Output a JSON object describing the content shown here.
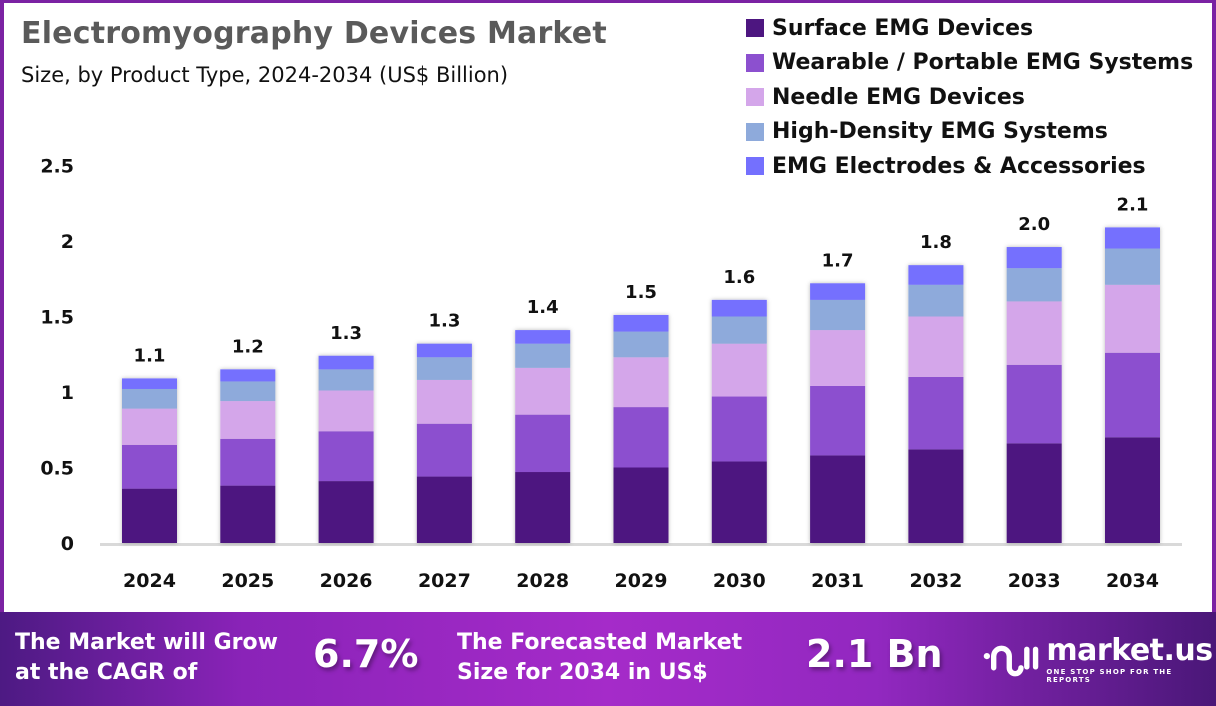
{
  "header": {
    "title": "Electromyography Devices Market",
    "subtitle": "Size, by Product Type, 2024-2034 (US$ Billion)"
  },
  "colors": {
    "brand_purple": "#7b22a3",
    "Surface EMG Devices": "#4d1680",
    "Wearable / Portable EMG Systems": "#8c50cf",
    "Needle EMG Devices": "#d4a6ea",
    "High-Density EMG Systems": "#8eaadb",
    "EMG Electrodes & Accessories": "#7470fe"
  },
  "chart_data": {
    "type": "bar",
    "stacked": true,
    "title": "Electromyography Devices Market",
    "subtitle": "Size, by Product Type, 2024-2034 (US$ Billion)",
    "xlabel": "",
    "ylabel": "",
    "ylim": [
      0,
      2.5
    ],
    "yticks": [
      0,
      0.5,
      1,
      1.5,
      2,
      2.5
    ],
    "ytick_labels": [
      "0",
      "0.5",
      "1",
      "1.5",
      "2",
      "2.5"
    ],
    "grid": false,
    "legend_position": "top-right",
    "categories": [
      "2024",
      "2025",
      "2026",
      "2027",
      "2028",
      "2029",
      "2030",
      "2031",
      "2032",
      "2033",
      "2034"
    ],
    "series": [
      {
        "name": "Surface EMG Devices",
        "color": "#4d1680",
        "values": [
          0.36,
          0.38,
          0.41,
          0.44,
          0.47,
          0.5,
          0.54,
          0.58,
          0.62,
          0.66,
          0.7
        ]
      },
      {
        "name": "Wearable / Portable EMG Systems",
        "color": "#8c50cf",
        "values": [
          0.29,
          0.31,
          0.33,
          0.35,
          0.38,
          0.4,
          0.43,
          0.46,
          0.48,
          0.52,
          0.56
        ]
      },
      {
        "name": "Needle EMG Devices",
        "color": "#d4a6ea",
        "values": [
          0.24,
          0.25,
          0.27,
          0.29,
          0.31,
          0.33,
          0.35,
          0.37,
          0.4,
          0.42,
          0.45
        ]
      },
      {
        "name": "High-Density EMG Systems",
        "color": "#8eaadb",
        "values": [
          0.13,
          0.13,
          0.14,
          0.15,
          0.16,
          0.17,
          0.18,
          0.2,
          0.21,
          0.22,
          0.24
        ]
      },
      {
        "name": "EMG Electrodes & Accessories",
        "color": "#7470fe",
        "values": [
          0.07,
          0.08,
          0.09,
          0.09,
          0.09,
          0.11,
          0.11,
          0.11,
          0.13,
          0.14,
          0.14
        ]
      }
    ],
    "totals_labels": [
      "1.1",
      "1.2",
      "1.3",
      "1.3",
      "1.4",
      "1.5",
      "1.6",
      "1.7",
      "1.8",
      "2.0",
      "2.1"
    ]
  },
  "banner": {
    "cagr_text_line1": "The Market will Grow",
    "cagr_text_line2": "at the CAGR of",
    "cagr_value": "6.7%",
    "forecast_text_line1": "The Forecasted Market",
    "forecast_text_line2": "Size for 2034 in US$",
    "forecast_value": "2.1 Bn",
    "logo_name": "market.us",
    "logo_tagline": "ONE STOP SHOP FOR THE REPORTS"
  }
}
